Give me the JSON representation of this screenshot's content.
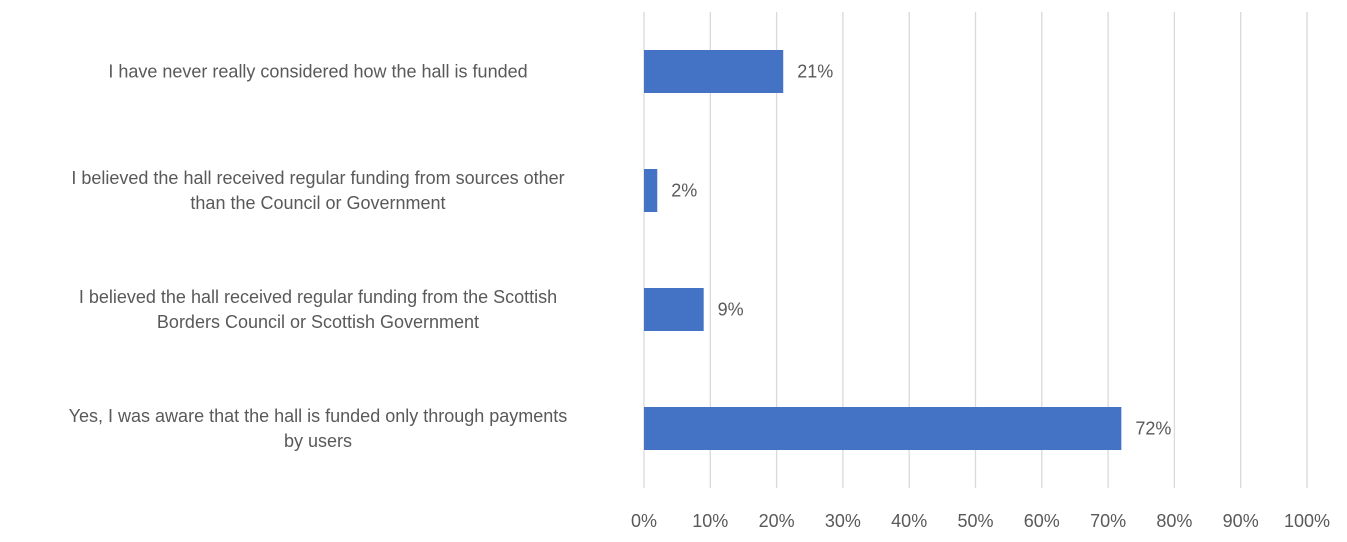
{
  "chart_data": {
    "type": "bar",
    "orientation": "horizontal",
    "title": "",
    "xlabel": "",
    "ylabel": "",
    "categories": [
      "I have never really considered how the hall is funded",
      "I believed the hall received regular funding from sources other than the Council or Government",
      "I believed the hall received regular funding from the Scottish Borders Council or Scottish Government",
      "Yes, I was aware that the hall is funded only through payments by users"
    ],
    "category_label_lines": [
      [
        "I have never really considered how the hall is funded"
      ],
      [
        "I believed the hall received regular funding from sources other",
        "than the Council or Government"
      ],
      [
        "I believed the hall received regular funding from the Scottish",
        "Borders Council or Scottish Government"
      ],
      [
        "Yes, I was aware that the hall is funded only through payments",
        "by users"
      ]
    ],
    "values": [
      21,
      2,
      9,
      72
    ],
    "data_labels": [
      "21%",
      "2%",
      "9%",
      "72%"
    ],
    "xlim": [
      0,
      100
    ],
    "x_ticks": [
      0,
      10,
      20,
      30,
      40,
      50,
      60,
      70,
      80,
      90,
      100
    ],
    "x_tick_labels": [
      "0%",
      "10%",
      "20%",
      "30%",
      "40%",
      "50%",
      "60%",
      "70%",
      "80%",
      "90%",
      "100%"
    ],
    "grid": true,
    "legend": "none",
    "colors": {
      "bar": "#4472C4",
      "grid": "#D9D9D9",
      "text": "#595959"
    }
  }
}
